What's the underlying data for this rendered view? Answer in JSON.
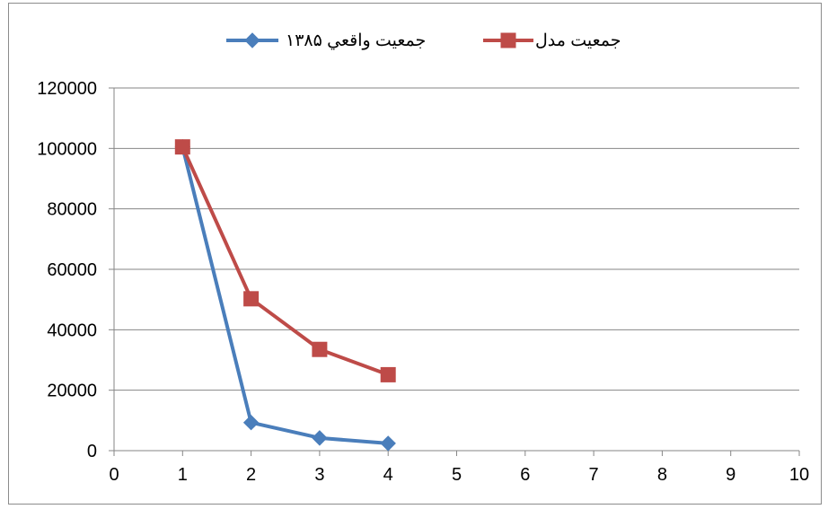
{
  "chart_data": {
    "type": "line",
    "title": "",
    "xlabel": "",
    "ylabel": "",
    "xlim": [
      0,
      10
    ],
    "ylim": [
      0,
      120000
    ],
    "x_ticks": [
      "0",
      "1",
      "2",
      "3",
      "4",
      "5",
      "6",
      "7",
      "8",
      "9",
      "10"
    ],
    "y_ticks": [
      "0",
      "20000",
      "40000",
      "60000",
      "80000",
      "100000",
      "120000"
    ],
    "grid": "horizontal",
    "legend_position": "top",
    "series": [
      {
        "name": "جمعيت واقعي ۱۳۸۵",
        "color": "#4a7ebb",
        "marker": "diamond",
        "x": [
          1,
          2,
          3,
          4
        ],
        "values": [
          100500,
          9300,
          4200,
          2400
        ]
      },
      {
        "name": "جمعيت مدل",
        "color": "#be4b48",
        "marker": "square",
        "x": [
          1,
          2,
          3,
          4
        ],
        "values": [
          100500,
          50250,
          33500,
          25125
        ]
      }
    ]
  }
}
